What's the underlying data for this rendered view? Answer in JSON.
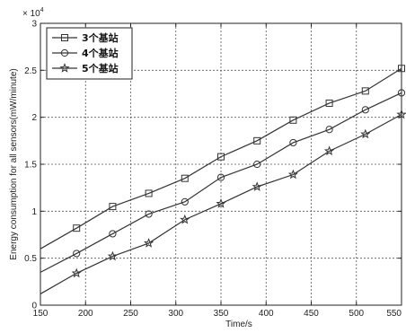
{
  "chart_data": {
    "type": "line",
    "title": "",
    "xlabel": "Time/s",
    "ylabel": "Energy consumption for all sensors(mW/minute)",
    "exponent_label": "× 10",
    "exponent_power": "4",
    "xlim": [
      150,
      550
    ],
    "ylim": [
      0,
      30000
    ],
    "x_ticks": [
      150,
      200,
      250,
      300,
      350,
      400,
      450,
      500,
      550
    ],
    "x_tick_labels": [
      "150",
      "200",
      "250",
      "300",
      "350",
      "400",
      "450",
      "500",
      "550"
    ],
    "y_ticks": [
      0,
      5000,
      10000,
      15000,
      20000,
      25000,
      30000
    ],
    "y_tick_labels": [
      "0",
      "0.5",
      "1",
      "1.5",
      "2",
      "2.5",
      "3"
    ],
    "grid": true,
    "legend_position": "top-left",
    "series": [
      {
        "name": "3个基站",
        "marker": "square",
        "x": [
          150,
          190,
          230,
          270,
          310,
          350,
          390,
          430,
          470,
          510,
          550
        ],
        "y": [
          6000,
          8200,
          10500,
          11900,
          13500,
          15800,
          17500,
          19700,
          21500,
          22800,
          25200
        ]
      },
      {
        "name": "4个基站",
        "marker": "circle",
        "x": [
          150,
          190,
          230,
          270,
          310,
          350,
          390,
          430,
          470,
          510,
          550
        ],
        "y": [
          3500,
          5500,
          7600,
          9700,
          11000,
          13600,
          15000,
          17300,
          18700,
          20800,
          22600
        ]
      },
      {
        "name": "5个基站",
        "marker": "star",
        "x": [
          150,
          190,
          230,
          270,
          310,
          350,
          390,
          430,
          470,
          510,
          550
        ],
        "y": [
          1200,
          3400,
          5200,
          6600,
          9100,
          10800,
          12600,
          13900,
          16400,
          18200,
          20300
        ]
      }
    ]
  }
}
